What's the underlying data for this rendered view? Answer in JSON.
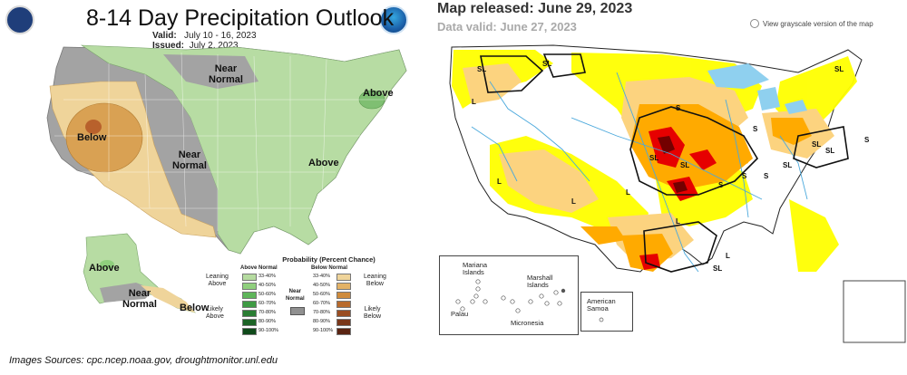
{
  "left_panel": {
    "title": "8-14 Day Precipitation Outlook",
    "valid_label": "Valid:",
    "valid_value": "July 10 - 16, 2023",
    "issued_label": "Issued:",
    "issued_value": "July 2, 2023",
    "map_labels": {
      "near_normal_north": "Near\nNormal",
      "above_northeast": "Above",
      "below_west": "Below",
      "near_normal_plains": "Near\nNormal",
      "above_east": "Above",
      "above_alaska": "Above",
      "near_normal_alaska": "Near\nNormal",
      "below_alaska": "Below"
    },
    "legend": {
      "title": "Probability (Percent Chance)",
      "above_header": "Above Normal",
      "below_header": "Below Normal",
      "above_ranges": [
        "33-40%",
        "40-50%",
        "50-60%",
        "60-70%",
        "70-80%",
        "80-90%",
        "90-100%"
      ],
      "below_ranges": [
        "33-40%",
        "40-50%",
        "50-60%",
        "60-70%",
        "70-80%",
        "80-90%",
        "90-100%"
      ],
      "above_colors": [
        "#b5dba0",
        "#8fcf7d",
        "#5eb55a",
        "#3e9a43",
        "#2a7d33",
        "#1c6326",
        "#0f4a1a"
      ],
      "below_colors": [
        "#efd49a",
        "#e3b266",
        "#cf8b3c",
        "#b86a2c",
        "#9a4d22",
        "#7a371a",
        "#5a2412"
      ],
      "leaning_above": "Leaning\nAbove",
      "likely_above": "Likely\nAbove",
      "near_normal": "Near\nNormal",
      "leaning_below": "Leaning\nBelow",
      "likely_below": "Likely\nBelow",
      "near_normal_color": "#909090"
    }
  },
  "right_panel": {
    "released": "Map released: June 29, 2023",
    "valid": "Data valid: June 27, 2023",
    "grayscale_link": "View grayscale version of the map",
    "impact_labels": [
      "SL",
      "SL",
      "L",
      "SL",
      "SL",
      "S",
      "S",
      "SL",
      "SL",
      "S",
      "L",
      "SL",
      "L",
      "S",
      "L",
      "L",
      "SL",
      "L",
      "SL",
      "S",
      "S"
    ],
    "insets": {
      "mariana": "Mariana\nIslands",
      "marshall": "Marshall\nIslands",
      "palau": "Palau",
      "micronesia": "Micronesia",
      "samoa": "American\nSamoa"
    },
    "colors": {
      "D0": "#ffff00",
      "D1": "#fcd37f",
      "D2": "#ffaa00",
      "D3": "#e60000",
      "D4": "#730000",
      "water": "#8fd0ef"
    }
  },
  "source": "Images Sources: cpc.ncep.noaa.gov, droughtmonitor.unl.edu"
}
